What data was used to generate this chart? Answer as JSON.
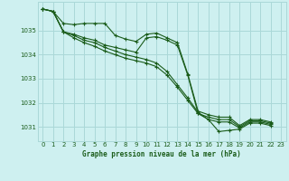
{
  "background_color": "#cef0f0",
  "grid_color": "#aad8d8",
  "line_color": "#1a5c1a",
  "xlabel": "Graphe pression niveau de la mer (hPa)",
  "xlim": [
    -0.5,
    23.5
  ],
  "ylim": [
    1030.4,
    1036.2
  ],
  "yticks": [
    1031,
    1032,
    1033,
    1034,
    1035
  ],
  "xticks": [
    0,
    1,
    2,
    3,
    4,
    5,
    6,
    7,
    8,
    9,
    10,
    11,
    12,
    13,
    14,
    15,
    16,
    17,
    18,
    19,
    20,
    21,
    22,
    23
  ],
  "series": [
    [
      1035.9,
      1035.8,
      1035.3,
      1035.25,
      1035.3,
      1035.3,
      1035.3,
      1034.8,
      1034.65,
      1034.55,
      1034.85,
      1034.9,
      1034.7,
      1034.5,
      1033.2,
      1031.65,
      1031.5,
      1031.4,
      1031.4,
      1031.05,
      1031.3,
      1031.3,
      1031.2
    ],
    [
      1035.9,
      1035.8,
      1034.95,
      1034.85,
      1034.7,
      1034.6,
      1034.4,
      1034.3,
      1034.2,
      1034.1,
      1034.7,
      1034.75,
      1034.6,
      1034.4,
      1033.15,
      1031.55,
      1031.4,
      1031.3,
      1031.3,
      1031.0,
      1031.25,
      1031.25,
      1031.15
    ],
    [
      1035.9,
      1035.8,
      1034.95,
      1034.8,
      1034.6,
      1034.5,
      1034.3,
      1034.15,
      1034.0,
      1033.9,
      1033.8,
      1033.65,
      1033.3,
      1032.75,
      1032.2,
      1031.6,
      1031.3,
      1031.2,
      1031.2,
      1030.95,
      1031.2,
      1031.2,
      1031.1
    ],
    [
      1035.9,
      1035.8,
      1034.95,
      1034.7,
      1034.5,
      1034.35,
      1034.15,
      1034.0,
      1033.85,
      1033.75,
      1033.65,
      1033.5,
      1033.15,
      1032.65,
      1032.1,
      1031.55,
      1031.3,
      1030.8,
      1030.85,
      1030.9,
      1031.15,
      1031.15,
      1031.05
    ]
  ]
}
